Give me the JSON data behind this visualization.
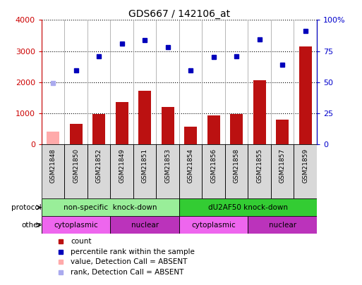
{
  "title": "GDS667 / 142106_at",
  "samples": [
    "GSM21848",
    "GSM21850",
    "GSM21852",
    "GSM21849",
    "GSM21851",
    "GSM21853",
    "GSM21854",
    "GSM21856",
    "GSM21858",
    "GSM21855",
    "GSM21857",
    "GSM21859"
  ],
  "counts": [
    400,
    650,
    970,
    1360,
    1720,
    1200,
    570,
    930,
    970,
    2060,
    800,
    3150
  ],
  "counts_absent": [
    true,
    false,
    false,
    false,
    false,
    false,
    false,
    false,
    false,
    false,
    false,
    false
  ],
  "percentile_ranks": [
    49.5,
    59.5,
    70.5,
    80.75,
    84.0,
    78.25,
    59.5,
    70.25,
    70.5,
    84.5,
    64.25,
    91.25
  ],
  "ranks_absent": [
    true,
    false,
    false,
    false,
    false,
    false,
    false,
    false,
    false,
    false,
    false,
    false
  ],
  "ylim_left": [
    0,
    4000
  ],
  "ylim_right": [
    0,
    100
  ],
  "left_ticks": [
    0,
    1000,
    2000,
    3000,
    4000
  ],
  "right_tick_labels": [
    "0",
    "25",
    "50",
    "75",
    "100%"
  ],
  "right_ticks": [
    0,
    25,
    50,
    75,
    100
  ],
  "protocol_groups": [
    {
      "label": "non-specific  knock-down",
      "start": 0,
      "end": 6,
      "color": "#99ee99"
    },
    {
      "label": "dU2AF50 knock-down",
      "start": 6,
      "end": 12,
      "color": "#33cc33"
    }
  ],
  "other_groups": [
    {
      "label": "cytoplasmic",
      "start": 0,
      "end": 3,
      "color": "#ee66ee"
    },
    {
      "label": "nuclear",
      "start": 3,
      "end": 6,
      "color": "#bb33bb"
    },
    {
      "label": "cytoplasmic",
      "start": 6,
      "end": 9,
      "color": "#ee66ee"
    },
    {
      "label": "nuclear",
      "start": 9,
      "end": 12,
      "color": "#bb33bb"
    }
  ],
  "bar_color_normal": "#bb1111",
  "bar_color_absent": "#ffaaaa",
  "dot_color_normal": "#0000bb",
  "dot_color_absent": "#aaaaee",
  "legend_items": [
    {
      "label": "count",
      "color": "#bb1111"
    },
    {
      "label": "percentile rank within the sample",
      "color": "#0000bb"
    },
    {
      "label": "value, Detection Call = ABSENT",
      "color": "#ffaaaa"
    },
    {
      "label": "rank, Detection Call = ABSENT",
      "color": "#aaaaee"
    }
  ],
  "protocol_label": "protocol",
  "other_label": "other",
  "background_color": "#ffffff"
}
